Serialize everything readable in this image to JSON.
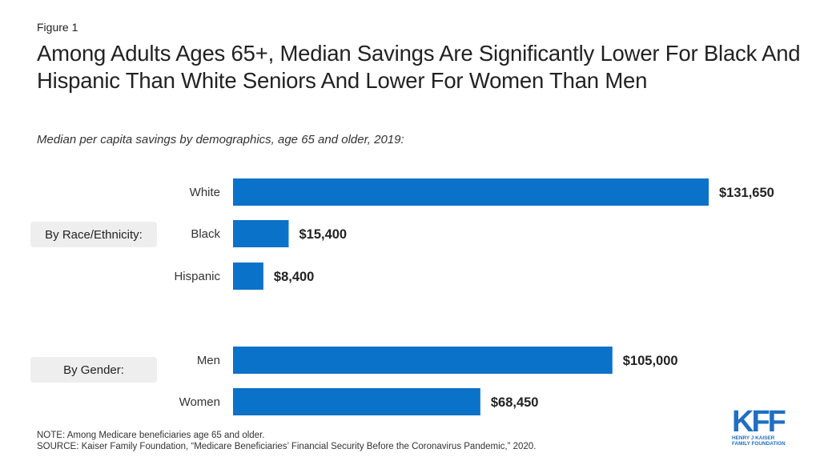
{
  "figure_label": "Figure 1",
  "title": "Among Adults Ages 65+, Median Savings Are Significantly Lower For Black And Hispanic Than White Seniors And Lower For Women Than Men",
  "subtitle": "Median per capita savings by demographics, age 65 and older, 2019:",
  "groups": [
    {
      "label": "By Race/Ethnicity:"
    },
    {
      "label": "By Gender:"
    }
  ],
  "chart_data": {
    "type": "bar",
    "orientation": "horizontal",
    "categories": [
      "White",
      "Black",
      "Hispanic",
      "Men",
      "Women"
    ],
    "values": [
      131650,
      15400,
      8400,
      105000,
      68450
    ],
    "value_labels": [
      "$131,650",
      "$15,400",
      "$8,400",
      "$105,000",
      "$68,450"
    ],
    "xlim": [
      0,
      131650
    ],
    "grid": false,
    "bar_color": "#0b72c9"
  },
  "notes": {
    "note": "NOTE: Among Medicare beneficiaries age 65 and older.",
    "source": "SOURCE: Kaiser Family Foundation, “Medicare Beneficiaries’ Financial Security Before the Coronavirus Pandemic,” 2020."
  },
  "logo": {
    "mark": "KFF",
    "line1": "HENRY J KAISER",
    "line2": "FAMILY FOUNDATION",
    "color": "#1f6fc3"
  }
}
